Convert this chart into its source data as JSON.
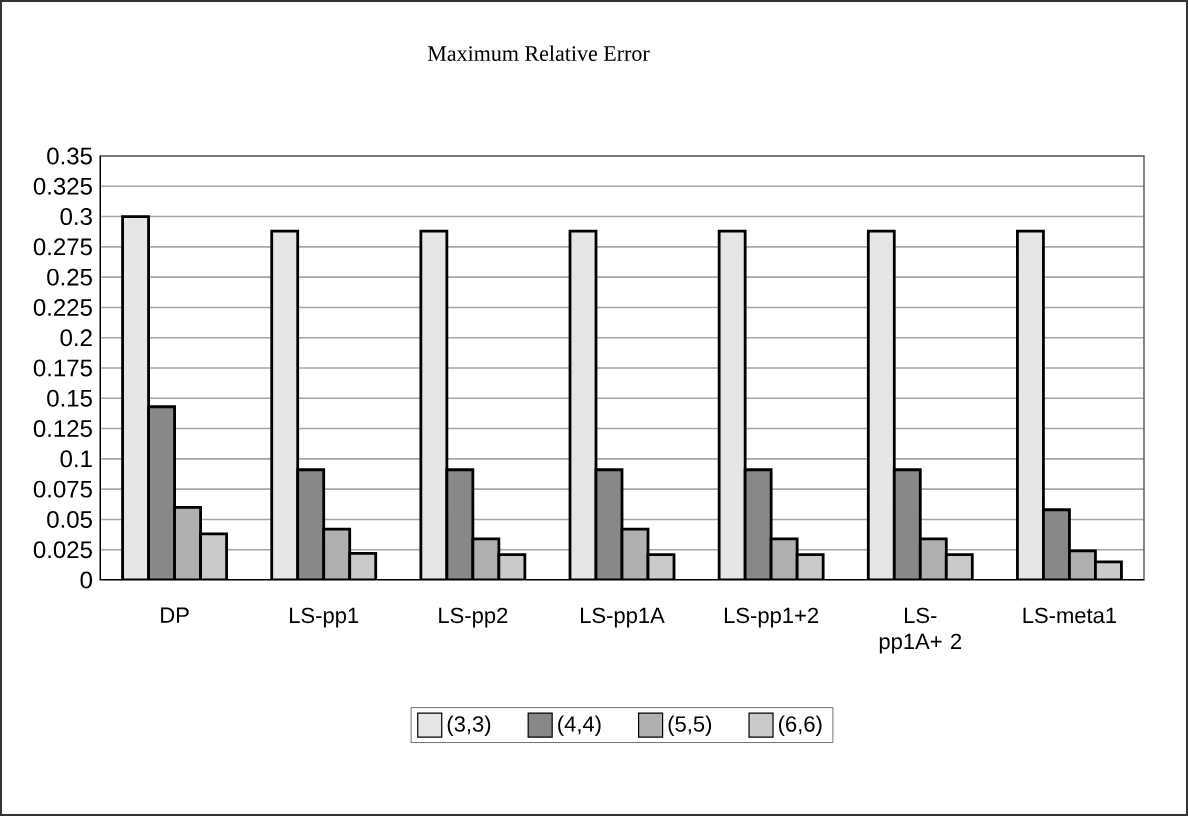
{
  "chart_data": {
    "type": "bar",
    "title": "Maximum Relative Error",
    "categories": [
      "DP",
      "LS-pp1",
      "LS-pp2",
      "LS-pp1A",
      "LS-pp1+2",
      "LS-pp1A+ 2",
      "LS-meta1"
    ],
    "series": [
      {
        "name": "(3,3)",
        "color": "#e6e6e6",
        "values": [
          0.3,
          0.288,
          0.288,
          0.288,
          0.288,
          0.288,
          0.288
        ]
      },
      {
        "name": "(4,4)",
        "color": "#888888",
        "values": [
          0.143,
          0.091,
          0.091,
          0.091,
          0.091,
          0.091,
          0.058
        ]
      },
      {
        "name": "(5,5)",
        "color": "#b0b0b0",
        "values": [
          0.06,
          0.042,
          0.034,
          0.042,
          0.034,
          0.034,
          0.024
        ]
      },
      {
        "name": "(6,6)",
        "color": "#cacaca",
        "values": [
          0.038,
          0.022,
          0.021,
          0.021,
          0.021,
          0.021,
          0.015
        ]
      }
    ],
    "ylim": [
      0,
      0.35
    ],
    "yticks": [
      0,
      0.025,
      0.05,
      0.075,
      0.1,
      0.125,
      0.15,
      0.175,
      0.2,
      0.225,
      0.25,
      0.275,
      0.3,
      0.325,
      0.35
    ],
    "grid": "y",
    "legend": "bottom"
  }
}
